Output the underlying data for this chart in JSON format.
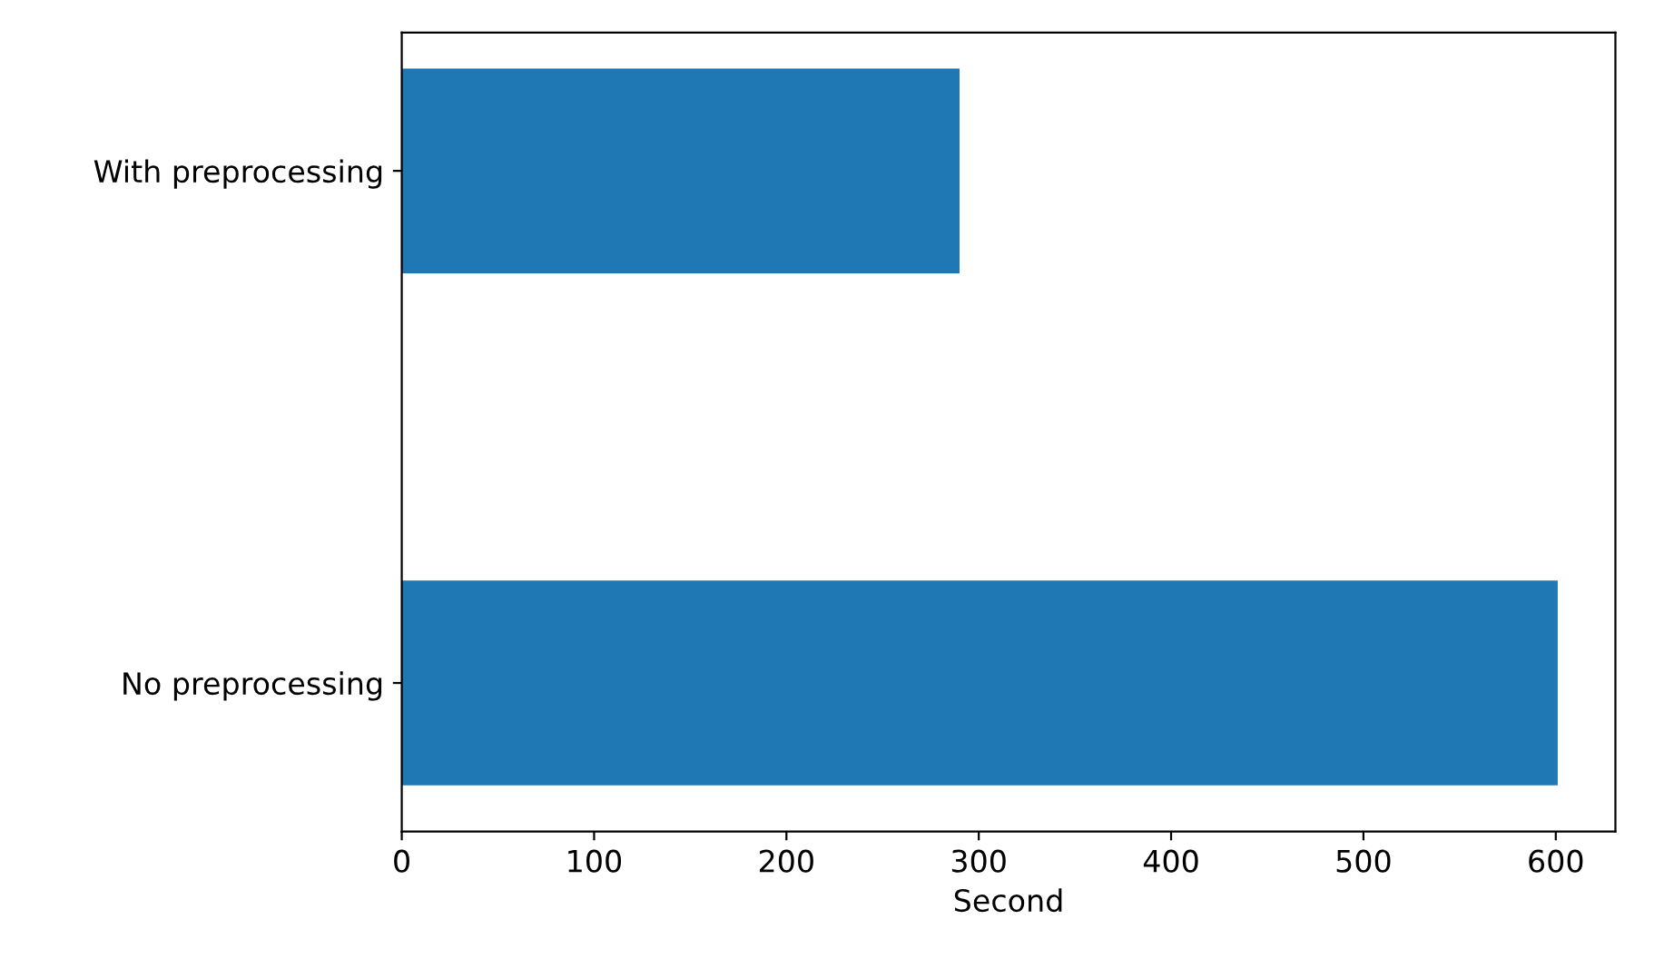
{
  "chart_data": {
    "type": "bar",
    "orientation": "horizontal",
    "xlabel": "Second",
    "categories": [
      "With preprocessing",
      "No preprocessing"
    ],
    "values": [
      290,
      601
    ],
    "color": "#1f77b4",
    "xlim": [
      0,
      631
    ],
    "xticks": [
      0,
      100,
      200,
      300,
      400,
      500,
      600
    ],
    "grid": false
  }
}
